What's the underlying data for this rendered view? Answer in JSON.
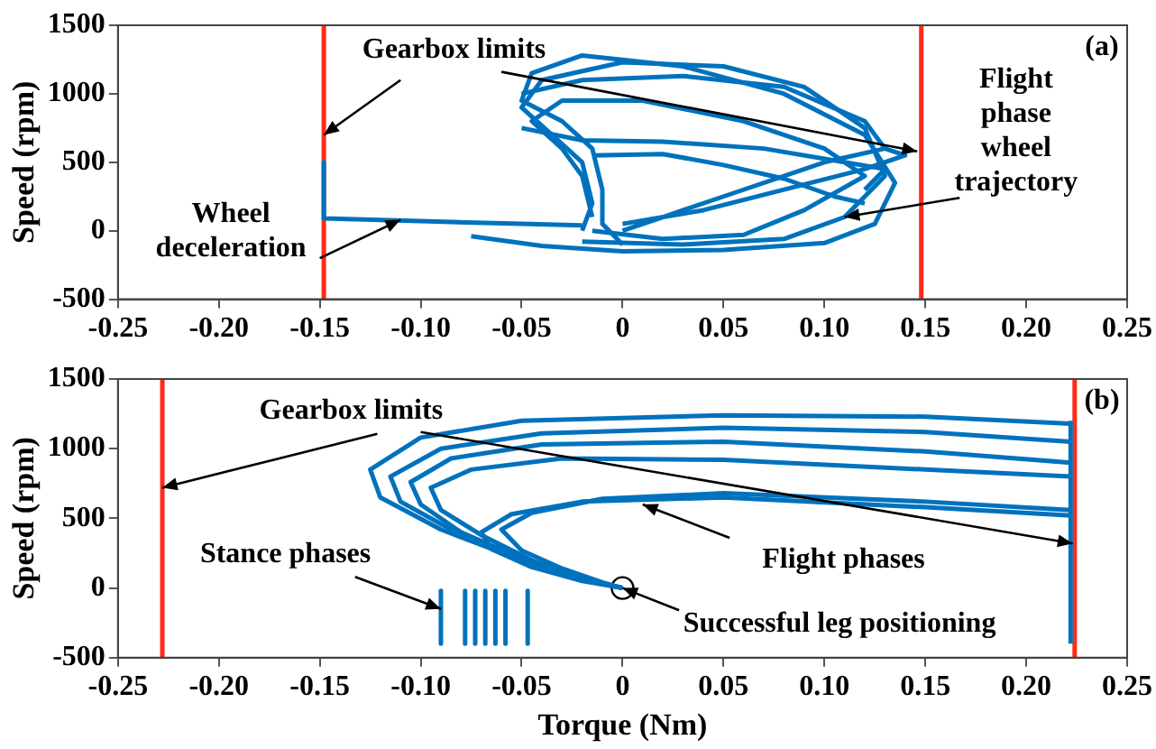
{
  "chart_data": [
    {
      "type": "line",
      "ylabel": "Speed (rpm)",
      "xlim": [
        -0.25,
        0.25
      ],
      "ylim": [
        -500,
        1500
      ],
      "xticks": [
        -0.25,
        {
          "value": -0.2,
          "label": "-0.20"
        },
        -0.15,
        {
          "value": -0.1,
          "label": "-0.10"
        },
        -0.05,
        0,
        0.05,
        {
          "value": 0.1,
          "label": "0.10"
        },
        0.15,
        {
          "value": 0.2,
          "label": "0.20"
        },
        0.25
      ],
      "yticks": [
        -500,
        0,
        500,
        1000,
        1500
      ],
      "grid": false,
      "legend": false,
      "marker": "none",
      "line_style": "solid",
      "ref_lines": [
        {
          "axis": "x",
          "value": -0.148,
          "color": "#ff2a1a"
        },
        {
          "axis": "x",
          "value": 0.148,
          "color": "#ff2a1a"
        }
      ],
      "annotations": [
        {
          "text": "Gearbox limits",
          "x": -0.148,
          "y": 700
        },
        {
          "text": "Flight\nphase\nwheel\ntrajectory",
          "x": 0.11,
          "y": 100
        },
        {
          "text": "Wheel\ndeceleration",
          "x": -0.11,
          "y": 80
        },
        "(a)"
      ],
      "series": [
        {
          "color": "#0072bd",
          "x": [
            -0.148,
            -0.148,
            -0.148,
            -0.1,
            -0.05,
            -0.02
          ],
          "values": [
            500,
            150,
            90,
            70,
            50,
            40
          ]
        },
        {
          "color": "#0072bd",
          "x": [
            -0.075,
            -0.04,
            0,
            0.05,
            0.1,
            0.125,
            0.135,
            0.12,
            0.08,
            0.03,
            -0.02,
            -0.045,
            -0.05,
            -0.03,
            -0.015,
            -0.01,
            -0.01,
            0
          ],
          "values": [
            -40,
            -110,
            -150,
            -140,
            -90,
            50,
            350,
            700,
            1000,
            1200,
            1280,
            1150,
            950,
            800,
            600,
            300,
            50,
            -100
          ]
        },
        {
          "color": "#0072bd",
          "x": [
            -0.02,
            0.03,
            0.08,
            0.11,
            0.13,
            0.12,
            0.09,
            0.05,
            0,
            -0.04,
            -0.05,
            -0.035,
            -0.02,
            -0.015,
            -0.02
          ],
          "values": [
            -80,
            -100,
            -60,
            100,
            400,
            750,
            1050,
            1200,
            1230,
            1100,
            900,
            700,
            500,
            200,
            0
          ]
        },
        {
          "color": "#0072bd",
          "x": [
            -0.015,
            0.02,
            0.06,
            0.09,
            0.12,
            0.1,
            0.06,
            0.01,
            -0.03,
            -0.045,
            -0.03,
            -0.02,
            -0.015
          ],
          "values": [
            0,
            -60,
            -30,
            150,
            400,
            600,
            800,
            950,
            950,
            800,
            600,
            400,
            100
          ]
        },
        {
          "color": "#0072bd",
          "x": [
            0,
            0.04,
            0.08,
            0.12,
            0.14,
            0.13,
            0.1,
            0.05,
            0.02,
            0
          ],
          "values": [
            50,
            150,
            300,
            450,
            550,
            600,
            500,
            250,
            100,
            0
          ]
        },
        {
          "color": "#0072bd",
          "x": [
            -0.015,
            0.02,
            0.05,
            0.08,
            0.105,
            0.12
          ],
          "values": [
            550,
            560,
            480,
            380,
            250,
            200
          ]
        },
        {
          "color": "#0072bd",
          "x": [
            -0.05,
            -0.02,
            0.02,
            0.07,
            0.11,
            0.13,
            0.12
          ],
          "values": [
            750,
            660,
            650,
            600,
            500,
            450,
            300
          ]
        },
        {
          "color": "#0072bd",
          "x": [
            -0.05,
            -0.02,
            0.03,
            0.08,
            0.12,
            0.13
          ],
          "values": [
            1000,
            1100,
            1130,
            1050,
            800,
            600
          ]
        }
      ]
    },
    {
      "type": "line",
      "xlabel": "Torque (Nm)",
      "ylabel": "Speed (rpm)",
      "xlim": [
        -0.25,
        0.25
      ],
      "ylim": [
        -500,
        1500
      ],
      "xticks": [
        -0.25,
        {
          "value": -0.2,
          "label": "-0.20"
        },
        -0.15,
        {
          "value": -0.1,
          "label": "-0.10"
        },
        -0.05,
        0,
        0.05,
        {
          "value": 0.1,
          "label": "0.10"
        },
        0.15,
        {
          "value": 0.2,
          "label": "0.20"
        },
        0.25
      ],
      "yticks": [
        -500,
        0,
        500,
        1000,
        1500
      ],
      "grid": false,
      "legend": false,
      "marker": "none",
      "line_style": "solid",
      "ref_lines": [
        {
          "axis": "x",
          "value": -0.228,
          "color": "#ff2a1a"
        },
        {
          "axis": "x",
          "value": 0.224,
          "color": "#ff2a1a"
        }
      ],
      "annotations": [
        {
          "text": "Gearbox limits",
          "x": -0.228,
          "y": 720
        },
        {
          "text": "Stance phases",
          "x": -0.09,
          "y": -150
        },
        {
          "text": "Flight phases",
          "x": 0.01,
          "y": 600
        },
        {
          "text": "Successful leg positioning",
          "x": 0,
          "y": 0
        },
        "(b)"
      ],
      "series": [
        {
          "color": "#0072bd",
          "x": [
            0.222,
            0.15,
            0.05,
            -0.05,
            -0.1,
            -0.125,
            -0.12,
            -0.09,
            -0.05,
            -0.02,
            0
          ],
          "values": [
            1180,
            1230,
            1240,
            1200,
            1080,
            850,
            650,
            420,
            200,
            60,
            0
          ]
        },
        {
          "color": "#0072bd",
          "x": [
            0.222,
            0.15,
            0.05,
            -0.04,
            -0.09,
            -0.115,
            -0.11,
            -0.085,
            -0.05,
            -0.02,
            0
          ],
          "values": [
            1050,
            1120,
            1150,
            1110,
            1000,
            800,
            620,
            420,
            220,
            70,
            0
          ]
        },
        {
          "color": "#0072bd",
          "x": [
            0.222,
            0.15,
            0.05,
            -0.04,
            -0.085,
            -0.105,
            -0.1,
            -0.08,
            -0.05,
            -0.02,
            0
          ],
          "values": [
            900,
            980,
            1050,
            1030,
            930,
            760,
            600,
            400,
            210,
            70,
            0
          ]
        },
        {
          "color": "#0072bd",
          "x": [
            0.222,
            0.15,
            0.05,
            -0.03,
            -0.075,
            -0.095,
            -0.09,
            -0.07,
            -0.045,
            -0.02,
            0
          ],
          "values": [
            800,
            850,
            920,
            930,
            850,
            720,
            560,
            380,
            200,
            60,
            0
          ]
        },
        {
          "color": "#0072bd",
          "x": [
            0.222,
            0.15,
            0.05,
            -0.02,
            -0.055,
            -0.07,
            -0.065,
            -0.045,
            -0.02,
            0
          ],
          "values": [
            520,
            580,
            650,
            620,
            530,
            400,
            280,
            150,
            50,
            0
          ]
        },
        {
          "color": "#0072bd",
          "x": [
            0.222,
            0.15,
            0.05,
            -0.01,
            -0.045,
            -0.06,
            -0.05,
            -0.03,
            -0.01,
            0
          ],
          "values": [
            560,
            620,
            680,
            640,
            540,
            420,
            270,
            140,
            40,
            0
          ]
        },
        {
          "color": "#0072bd",
          "x": [
            0.222,
            0.222
          ],
          "values": [
            -400,
            1200
          ]
        },
        {
          "color": "#0072bd",
          "x": [
            -0.09,
            -0.09
          ],
          "values": [
            -20,
            -400
          ]
        },
        {
          "color": "#0072bd",
          "x": [
            -0.078,
            -0.078
          ],
          "values": [
            -20,
            -400
          ]
        },
        {
          "color": "#0072bd",
          "x": [
            -0.073,
            -0.073
          ],
          "values": [
            -20,
            -400
          ]
        },
        {
          "color": "#0072bd",
          "x": [
            -0.068,
            -0.068
          ],
          "values": [
            -20,
            -400
          ]
        },
        {
          "color": "#0072bd",
          "x": [
            -0.063,
            -0.063
          ],
          "values": [
            -20,
            -400
          ]
        },
        {
          "color": "#0072bd",
          "x": [
            -0.058,
            -0.058
          ],
          "values": [
            -20,
            -400
          ]
        },
        {
          "color": "#0072bd",
          "x": [
            -0.047,
            -0.047
          ],
          "values": [
            -20,
            -400
          ]
        },
        {
          "type": "scatter",
          "color": "#000000",
          "marker": "circle",
          "x": [
            0
          ],
          "values": [
            0
          ]
        }
      ]
    }
  ]
}
